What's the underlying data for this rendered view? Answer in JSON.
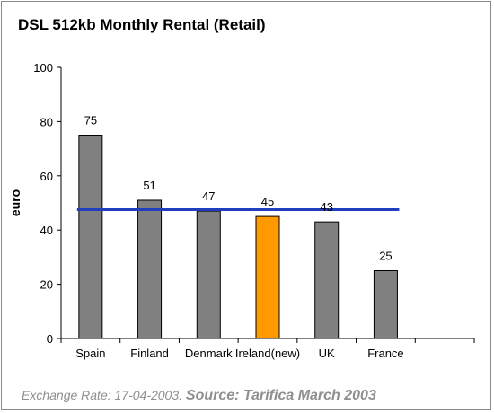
{
  "chart_data": {
    "type": "bar",
    "title": "DSL 512kb Monthly Rental (Retail)",
    "xlabel": "",
    "ylabel": "euro",
    "ylim": [
      0,
      100
    ],
    "yticks": [
      0,
      20,
      40,
      60,
      80,
      100
    ],
    "categories": [
      "Spain",
      "Finland",
      "Denmark",
      "Ireland(new)",
      "UK",
      "France"
    ],
    "values": [
      75,
      51,
      47,
      45,
      43,
      25
    ],
    "data_labels": [
      "75",
      "51",
      "47",
      "45",
      "43",
      "25"
    ],
    "reference_line": {
      "value": 47.5,
      "color": "#1f3fbf"
    },
    "colors": {
      "bar": "#808080",
      "highlight": "#ff9900",
      "highlight_category": "Ireland(new)"
    },
    "grid": false,
    "legend": "none"
  },
  "footer": {
    "note": "Exchange Rate: 17-04-2003.",
    "source": "Source: Tarifica March 2003"
  }
}
